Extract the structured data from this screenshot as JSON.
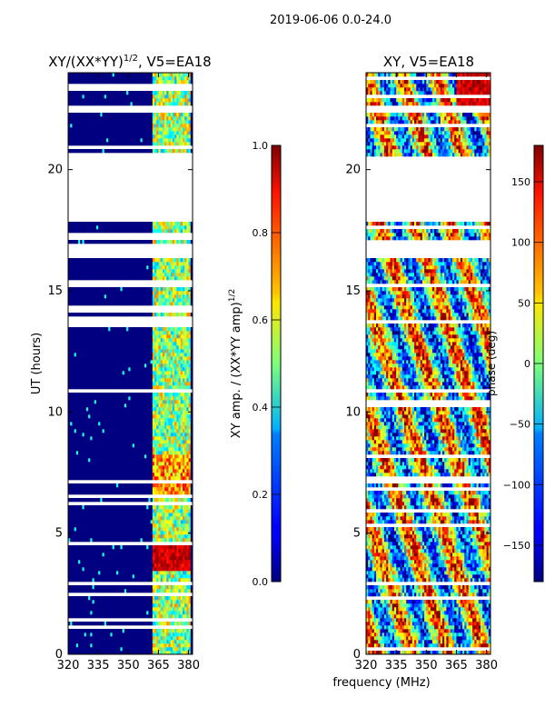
{
  "figure": {
    "suptitle": "2019-06-06 0.0-24.0",
    "xlabel": "frequency (MHz)"
  },
  "chart_data": [
    {
      "type": "heatmap",
      "title": "XY/(XX*YY)",
      "title_superscript": "1/2",
      "title_suffix": ", V5=EA18",
      "ylabel": "UT (hours)",
      "xlim": [
        320,
        382
      ],
      "ylim": [
        0,
        24
      ],
      "xticks": [
        "320",
        "335",
        "350",
        "365",
        "380"
      ],
      "xtick_values": [
        320,
        335,
        350,
        365,
        380
      ],
      "yticks": [
        "0",
        "5",
        "10",
        "15",
        "20"
      ],
      "ytick_values": [
        0,
        5,
        10,
        15,
        20
      ],
      "value_description": "mostly near 0 (dark blue) below 362 MHz; bands of 0.3-1.0 between 362 and 381 MHz",
      "colorbar": {
        "label": "XY amp. / (XX*YY amp)",
        "label_superscript": "1/2",
        "range": [
          0.0,
          1.0
        ],
        "ticks": [
          "0.0",
          "0.2",
          "0.4",
          "0.6",
          "0.8",
          "1.0"
        ],
        "tick_values": [
          0.0,
          0.2,
          0.4,
          0.6,
          0.8,
          1.0
        ],
        "colormap": "jet"
      },
      "missing_data_hours": [
        [
          17.9,
          20.6
        ],
        [
          16.3,
          17.0
        ],
        [
          10.8,
          11.0
        ],
        [
          22.3,
          22.6
        ]
      ]
    },
    {
      "type": "heatmap",
      "title": "XY, V5=EA18",
      "ylabel": "",
      "xlim": [
        320,
        382
      ],
      "ylim": [
        0,
        24
      ],
      "xticks": [
        "320",
        "335",
        "350",
        "365",
        "380"
      ],
      "xtick_values": [
        320,
        335,
        350,
        365,
        380
      ],
      "yticks": [
        "0",
        "5",
        "10",
        "15",
        "20"
      ],
      "ytick_values": [
        0,
        5,
        10,
        15,
        20
      ],
      "value_description": "phase values spanning -180 to 180 degrees, noisy",
      "colorbar": {
        "label": "phase (deg)",
        "range": [
          -180,
          180
        ],
        "ticks": [
          "−150",
          "−100",
          "−50",
          "0",
          "50",
          "100",
          "150"
        ],
        "tick_values": [
          -150,
          -100,
          -50,
          0,
          50,
          100,
          150
        ],
        "colormap": "jet"
      },
      "missing_data_hours": [
        [
          17.9,
          20.6
        ],
        [
          16.3,
          17.0
        ],
        [
          10.8,
          11.0
        ],
        [
          22.3,
          22.6
        ]
      ]
    }
  ]
}
